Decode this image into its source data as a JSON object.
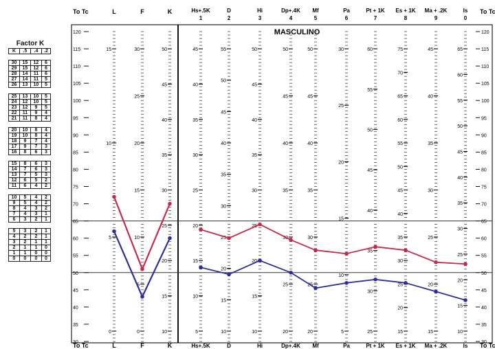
{
  "factor_k": {
    "title": "Factor K",
    "headers": [
      "K",
      ".5",
      ".4",
      ".2"
    ],
    "groups": [
      [
        [
          "30",
          "15",
          "12",
          "6"
        ],
        [
          "29",
          "15",
          "12",
          "6"
        ],
        [
          "28",
          "14",
          "11",
          "6"
        ],
        [
          "27",
          "14",
          "11",
          "5"
        ],
        [
          "26",
          "13",
          "10",
          "5"
        ]
      ],
      [
        [
          "25",
          "13",
          "10",
          "5"
        ],
        [
          "24",
          "12",
          "10",
          "5"
        ],
        [
          "23",
          "12",
          "9",
          "5"
        ],
        [
          "22",
          "11",
          "9",
          "4"
        ],
        [
          "21",
          "11",
          "8",
          "4"
        ]
      ],
      [
        [
          "20",
          "10",
          "8",
          "4"
        ],
        [
          "19",
          "10",
          "8",
          "4"
        ],
        [
          "18",
          "9",
          "7",
          "4"
        ],
        [
          "17",
          "9",
          "7",
          "3"
        ],
        [
          "16",
          "8",
          "6",
          "3"
        ]
      ],
      [
        [
          "15",
          "8",
          "6",
          "3"
        ],
        [
          "14",
          "7",
          "6",
          "3"
        ],
        [
          "13",
          "7",
          "5",
          "3"
        ],
        [
          "12",
          "6",
          "5",
          "2"
        ],
        [
          "11",
          "6",
          "4",
          "2"
        ]
      ],
      [
        [
          "10",
          "5",
          "4",
          "2"
        ],
        [
          "9",
          "5",
          "4",
          "2"
        ],
        [
          "8",
          "4",
          "3",
          "2"
        ],
        [
          "7",
          "4",
          "3",
          "1"
        ],
        [
          "6",
          "3",
          "2",
          "1"
        ]
      ],
      [
        [
          "5",
          "3",
          "2",
          "1"
        ],
        [
          "4",
          "2",
          "2",
          "1"
        ],
        [
          "3",
          "2",
          "1",
          "1"
        ],
        [
          "2",
          "1",
          "1",
          "0"
        ],
        [
          "1",
          "1",
          "0",
          "0"
        ],
        [
          "0",
          "0",
          "0",
          "0"
        ]
      ]
    ]
  },
  "chart_data": {
    "type": "line",
    "title": "MASCULINO",
    "tscore_label": "To Tc",
    "tscore_ticks": [
      30,
      35,
      40,
      45,
      50,
      55,
      60,
      65,
      70,
      75,
      80,
      85,
      90,
      95,
      100,
      105,
      110,
      115,
      120
    ],
    "ylim": [
      30,
      120
    ],
    "reference_lines": [
      50,
      65
    ],
    "validity_scales": {
      "labels": [
        "L",
        "F",
        "K"
      ],
      "raw_ticks": [
        [
          0,
          5,
          10,
          15
        ],
        [
          0,
          5,
          10,
          15,
          20,
          25,
          30
        ],
        [
          10,
          15,
          20,
          25,
          30,
          35,
          40,
          45,
          50
        ]
      ]
    },
    "clinical_scales": {
      "labels": [
        "Hs+.5K",
        "D",
        "Hi",
        "Dp+.4K",
        "Mf",
        "Pa",
        "Pt + 1K",
        "Es + 1K",
        "Ma + .2K",
        "Is"
      ],
      "numbers": [
        "1",
        "2",
        "3",
        "4",
        "5",
        "6",
        "7",
        "8",
        "9",
        "0"
      ],
      "bottom_labels": [
        "Hs+.5K",
        "D",
        "Hi",
        "Dp+.4K",
        "Mf",
        "Pa",
        "Pt + 1K",
        "Es + 1K",
        "Ma + .2K",
        "Is"
      ],
      "raw_ticks": [
        [
          5,
          10,
          15,
          20,
          25,
          30,
          35,
          40,
          45
        ],
        [
          10,
          15,
          20,
          25,
          30,
          35,
          40,
          45,
          50,
          55
        ],
        [
          10,
          15,
          20,
          25,
          30,
          35,
          40,
          45,
          50
        ],
        [
          20,
          25,
          30,
          35,
          40,
          45,
          50
        ],
        [
          20,
          25,
          30,
          35,
          40,
          45,
          50
        ],
        [
          5,
          10,
          15,
          20,
          25,
          30
        ],
        [
          25,
          30,
          35,
          40,
          45,
          50,
          55,
          60
        ],
        [
          15,
          20,
          25,
          30,
          35,
          40,
          45,
          50,
          55,
          60,
          65,
          70,
          75
        ],
        [
          15,
          20,
          25,
          30,
          35,
          40,
          45
        ],
        [
          10,
          15,
          20,
          25,
          30,
          35,
          40,
          45,
          50,
          55,
          60,
          65
        ]
      ]
    },
    "series": [
      {
        "color": "#c8284a",
        "validity": [
          72,
          51,
          70
        ],
        "clinical": [
          62.5,
          60,
          64,
          59.5,
          56.5,
          55.5,
          57.5,
          56.5,
          53,
          52.5
        ]
      },
      {
        "color": "#2a2f9c",
        "validity": [
          62,
          43,
          60
        ],
        "clinical": [
          51.5,
          49.5,
          53.5,
          50,
          45.5,
          47,
          48,
          47,
          44.5,
          42
        ]
      }
    ]
  }
}
